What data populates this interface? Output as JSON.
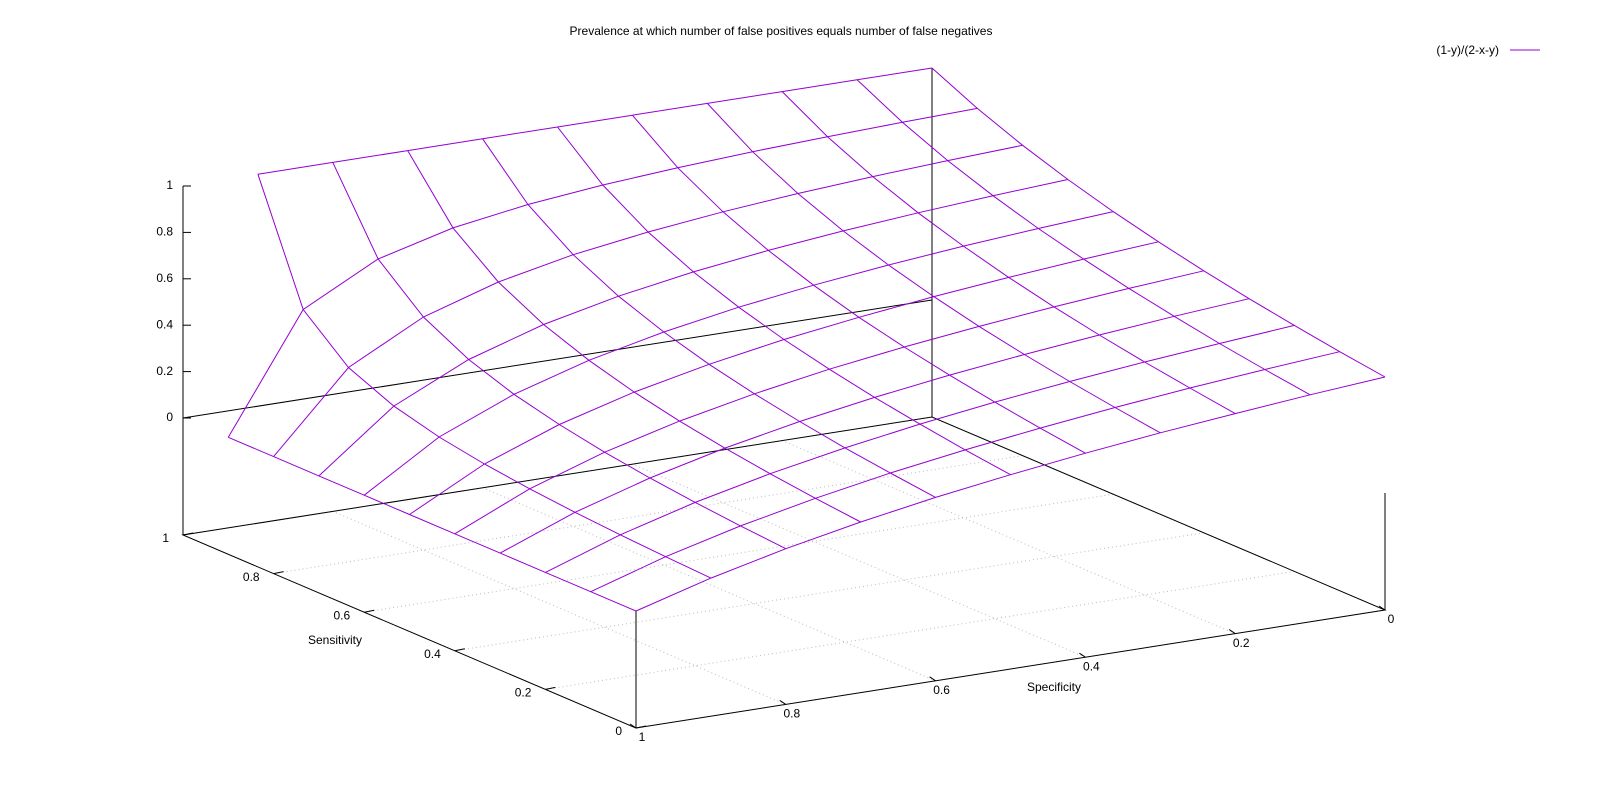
{
  "chart_data": {
    "type": "surface",
    "title": "Prevalence at which number of false positives equals number of false negatives",
    "x_label": "Sensitivity",
    "y_label": "Specificity",
    "x": [
      0,
      0.1,
      0.2,
      0.3,
      0.4,
      0.5,
      0.6,
      0.7,
      0.8,
      0.9,
      1
    ],
    "y": [
      0,
      0.1,
      0.2,
      0.3,
      0.4,
      0.5,
      0.6,
      0.7,
      0.8,
      0.9,
      1
    ],
    "z": [
      [
        0.5,
        0.474,
        0.444,
        0.412,
        0.375,
        0.333,
        0.286,
        0.231,
        0.167,
        0.091,
        0
      ],
      [
        0.526,
        0.5,
        0.471,
        0.438,
        0.4,
        0.357,
        0.308,
        0.25,
        0.182,
        0.1,
        0
      ],
      [
        0.556,
        0.529,
        0.5,
        0.467,
        0.429,
        0.385,
        0.333,
        0.273,
        0.2,
        0.111,
        0
      ],
      [
        0.588,
        0.563,
        0.533,
        0.5,
        0.462,
        0.417,
        0.364,
        0.3,
        0.222,
        0.125,
        0
      ],
      [
        0.625,
        0.6,
        0.571,
        0.538,
        0.5,
        0.455,
        0.4,
        0.333,
        0.25,
        0.143,
        0
      ],
      [
        0.667,
        0.643,
        0.615,
        0.583,
        0.545,
        0.5,
        0.444,
        0.375,
        0.286,
        0.167,
        0
      ],
      [
        0.714,
        0.692,
        0.667,
        0.636,
        0.6,
        0.556,
        0.5,
        0.429,
        0.333,
        0.2,
        0
      ],
      [
        0.769,
        0.75,
        0.727,
        0.7,
        0.667,
        0.625,
        0.571,
        0.5,
        0.4,
        0.25,
        0
      ],
      [
        0.833,
        0.818,
        0.8,
        0.778,
        0.75,
        0.714,
        0.667,
        0.6,
        0.5,
        0.333,
        0
      ],
      [
        0.909,
        0.9,
        0.889,
        0.875,
        0.857,
        0.833,
        0.8,
        0.75,
        0.667,
        0.5,
        0
      ],
      [
        1,
        1,
        1,
        1,
        1,
        1,
        1,
        1,
        1,
        1,
        null
      ]
    ],
    "xlim": [
      0,
      1
    ],
    "ylim": [
      0,
      1
    ],
    "zlim": [
      0,
      1
    ],
    "xticks": [
      0,
      0.2,
      0.4,
      0.6,
      0.8,
      1
    ],
    "yticks": [
      0,
      0.2,
      0.4,
      0.6,
      0.8,
      1
    ],
    "zticks": [
      0,
      0.2,
      0.4,
      0.6,
      0.8,
      1
    ],
    "series": [
      {
        "name": "(1-y)/(2-x-y)",
        "color": "#9400d3"
      }
    ],
    "legend": "upper right",
    "grid": true
  }
}
